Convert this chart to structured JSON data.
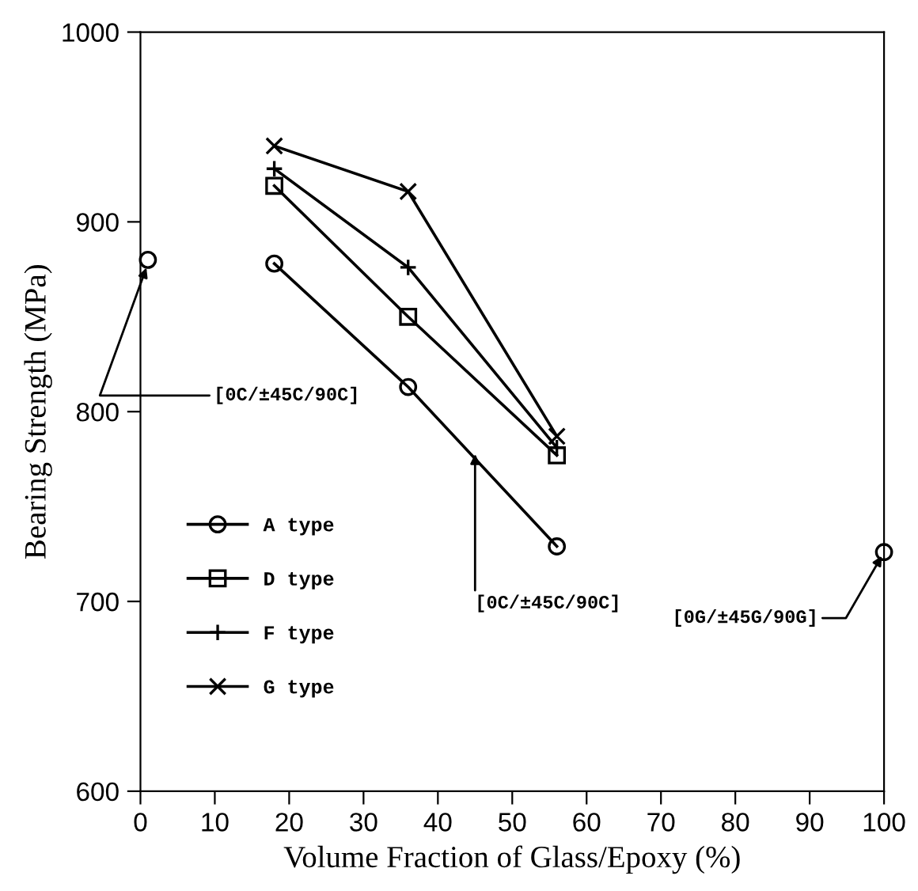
{
  "chart_data": {
    "type": "line",
    "xlabel": "Volume Fraction of Glass/Epoxy (%)",
    "ylabel": "Bearing Strength (MPa)",
    "xlim": [
      0,
      100
    ],
    "xticks": [
      0,
      10,
      20,
      30,
      40,
      50,
      60,
      70,
      80,
      90,
      100
    ],
    "ylim": [
      600,
      1000
    ],
    "yticks": [
      600,
      700,
      800,
      900,
      1000
    ],
    "grid": false,
    "legend": "bottom left",
    "line_style": "solid",
    "series": [
      {
        "name": "A type",
        "color": "#000000",
        "marker": "circle",
        "x": [
          18,
          36,
          56
        ],
        "values": [
          878,
          813,
          729
        ]
      },
      {
        "name": "D type",
        "color": "#000000",
        "marker": "square",
        "x": [
          18,
          36,
          56
        ],
        "values": [
          919,
          850,
          777
        ]
      },
      {
        "name": "F type",
        "color": "#000000",
        "marker": "plus",
        "x": [
          18,
          36,
          56
        ],
        "values": [
          928,
          876,
          781
        ]
      },
      {
        "name": "G type",
        "color": "#000000",
        "marker": "cross",
        "x": [
          18,
          36,
          56
        ],
        "values": [
          940,
          916,
          787
        ]
      },
      {
        "type": "scatter",
        "color": "#000000",
        "marker": "circle",
        "x": [
          1,
          100
        ],
        "values": [
          880,
          726
        ]
      }
    ],
    "annotations": [
      {
        "text": "[0C/±45C/90C]",
        "x": 1,
        "y": 878
      },
      {
        "text": "[0C/±45C/90C]",
        "x": 45,
        "y": 780
      },
      {
        "text": "[0G/±45G/90G]",
        "x": 100,
        "y": 726
      }
    ]
  }
}
